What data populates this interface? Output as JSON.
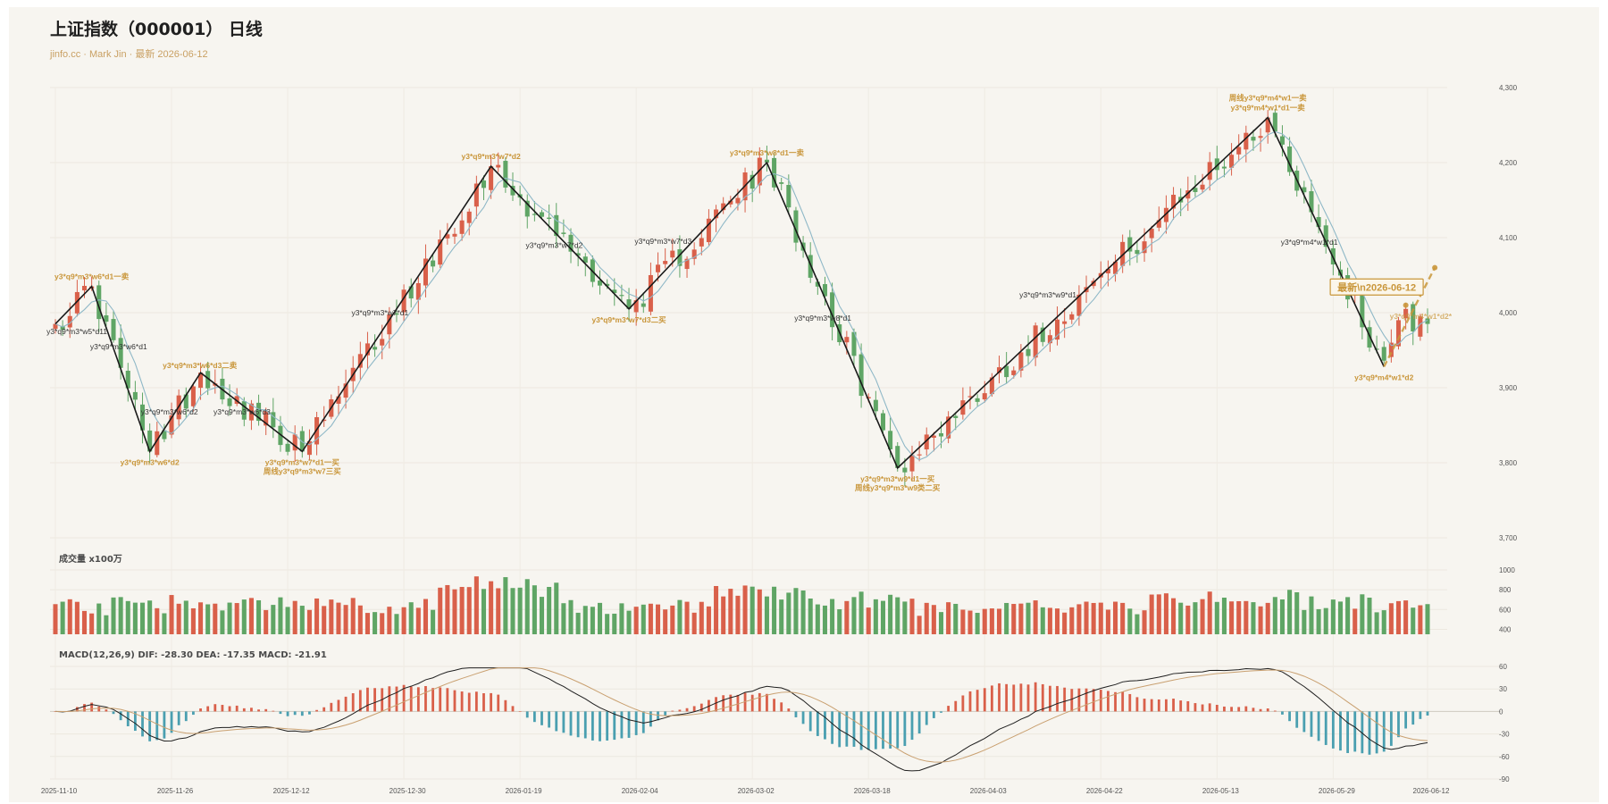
{
  "header": {
    "title": "上证指数（000001） 日线",
    "subtitle": "jinfo.cc · Mark Jin · 最新 2026-06-12"
  },
  "panels": {
    "volume_title": "成交量 x100万",
    "macd_title": "MACD(12,26,9) DIF: -28.30 DEA: -17.35 MACD: -21.91"
  },
  "colors": {
    "up": "#d9604a",
    "down": "#5fa565",
    "ma_line": "#8fb8c7",
    "zigzag": "#1a1a1a",
    "annotation_gold": "#c9963a",
    "annotation_dark": "#333333",
    "dif_line": "#1f1f1f",
    "dea_line": "#c9a070",
    "hist_pos": "#d9604a",
    "hist_neg": "#4a9fb0",
    "latest_box": "#c9963a"
  },
  "chart_data": {
    "type": "candlestick",
    "title": "上证指数（000001） 日线",
    "x_tick_labels": [
      "2025-11-10",
      "2025-11-26",
      "2025-12-12",
      "2025-12-30",
      "2026-01-19",
      "2026-02-04",
      "2026-03-02",
      "2026-03-18",
      "2026-04-03",
      "2026-04-22",
      "2026-05-13",
      "2026-05-29",
      "2026-06-12"
    ],
    "x_tick_indices": [
      0,
      16,
      32,
      48,
      64,
      80,
      96,
      112,
      128,
      144,
      160,
      176,
      189
    ],
    "price_axis": {
      "ticks": [
        3700,
        3800,
        3900,
        4000,
        4100,
        4200,
        4300
      ],
      "range": [
        3700,
        4300
      ]
    },
    "volume_axis": {
      "ticks": [
        400,
        600,
        800,
        1000
      ],
      "range": [
        350,
        1000
      ]
    },
    "macd_axis": {
      "ticks": [
        60,
        30,
        0,
        -30,
        -60,
        -90
      ],
      "range": [
        -90,
        60
      ]
    },
    "zigzag": [
      {
        "i": 0,
        "v": 3985
      },
      {
        "i": 5,
        "v": 4035
      },
      {
        "i": 13,
        "v": 3815
      },
      {
        "i": 20,
        "v": 3920
      },
      {
        "i": 34,
        "v": 3815
      },
      {
        "i": 60,
        "v": 4195
      },
      {
        "i": 79,
        "v": 4005
      },
      {
        "i": 98,
        "v": 4200
      },
      {
        "i": 116,
        "v": 3793
      },
      {
        "i": 167,
        "v": 4260
      },
      {
        "i": 183,
        "v": 3928
      }
    ],
    "latest_label": "最新\\n2026-06-12",
    "projection": [
      {
        "i": 183,
        "v": 3928
      },
      {
        "i": 190,
        "v": 4060
      }
    ],
    "annotations": [
      {
        "text": "y3*q9*m3*w6*d1一卖",
        "i": 5,
        "v": 4035,
        "style": "gold",
        "pos": "above"
      },
      {
        "text": "y3*q9*m3*w5*d11",
        "i": 1,
        "v": 3975,
        "style": "dark",
        "pos": "right"
      },
      {
        "text": "y3*q9*m3*w6*d1",
        "i": 7,
        "v": 3955,
        "style": "dark",
        "pos": "right"
      },
      {
        "text": "y3*q9*m3*w6*d3二卖",
        "i": 17,
        "v": 3930,
        "style": "gold",
        "pos": "right"
      },
      {
        "text": "y3*q9*m3*w6*d2",
        "i": 13,
        "v": 3815,
        "style": "gold",
        "pos": "below"
      },
      {
        "text": "y3*q9*m3*w6*d2",
        "i": 14,
        "v": 3868,
        "style": "dark",
        "pos": "right"
      },
      {
        "text": "y3*q9*m3*w6*d3",
        "i": 24,
        "v": 3868,
        "style": "dark",
        "pos": "right"
      },
      {
        "text": "y3*q9*m3*w7*d1一买",
        "i": 34,
        "v": 3815,
        "style": "gold",
        "pos": "below"
      },
      {
        "text": "周线y3*q9*m3*w7三买",
        "i": 34,
        "v": 3815,
        "style": "gold",
        "pos": "below2"
      },
      {
        "text": "y3*q9*m3*w7*d1",
        "i": 43,
        "v": 4000,
        "style": "dark",
        "pos": "right"
      },
      {
        "text": "y3*q9*m3*w7*d2",
        "i": 60,
        "v": 4195,
        "style": "gold",
        "pos": "above"
      },
      {
        "text": "y3*q9*m3*w7*d2",
        "i": 67,
        "v": 4090,
        "style": "dark",
        "pos": "right"
      },
      {
        "text": "y3*q9*m3*w7*d3二买",
        "i": 79,
        "v": 4005,
        "style": "gold",
        "pos": "below"
      },
      {
        "text": "y3*q9*m3*w7*d3",
        "i": 82,
        "v": 4095,
        "style": "dark",
        "pos": "right"
      },
      {
        "text": "y3*q9*m3*w8*d1一卖",
        "i": 98,
        "v": 4200,
        "style": "gold",
        "pos": "above"
      },
      {
        "text": "y3*q9*m3*w8*d1",
        "i": 104,
        "v": 3993,
        "style": "dark",
        "pos": "right"
      },
      {
        "text": "y3*q9*m3*w9*d1一买",
        "i": 116,
        "v": 3793,
        "style": "gold",
        "pos": "below"
      },
      {
        "text": "周线y3*q9*m3*w9类二买",
        "i": 116,
        "v": 3793,
        "style": "gold",
        "pos": "below2"
      },
      {
        "text": "y3*q9*m3*w9*d1",
        "i": 135,
        "v": 4024,
        "style": "dark",
        "pos": "right"
      },
      {
        "text": "周线y3*q9*m4*w1一卖",
        "i": 167,
        "v": 4260,
        "style": "gold",
        "pos": "above2"
      },
      {
        "text": "y3*q9*m4*w1*d1一卖",
        "i": 167,
        "v": 4260,
        "style": "gold",
        "pos": "above"
      },
      {
        "text": "y3*q9*m4*w1*d1",
        "i": 171,
        "v": 4094,
        "style": "dark",
        "pos": "right"
      },
      {
        "text": "y3*q9*m4*w1*d2",
        "i": 183,
        "v": 3928,
        "style": "gold",
        "pos": "below"
      },
      {
        "text": "y3*q9*m4*w1*d2*",
        "i": 186,
        "v": 3995,
        "style": "projection",
        "pos": "right"
      }
    ],
    "series": [
      {
        "type": "candlestick",
        "name": "",
        "count": 190,
        "note": "OHLC generated to follow zigzag turning points"
      },
      {
        "type": "line",
        "name": "",
        "role": "moving average"
      },
      {
        "type": "bar",
        "name": "",
        "role": "volume"
      },
      {
        "type": "line",
        "name": "",
        "role": "DIF"
      },
      {
        "type": "line",
        "name": "",
        "role": "DEA"
      },
      {
        "type": "bar",
        "name": "",
        "role": "MACD histogram"
      }
    ]
  }
}
